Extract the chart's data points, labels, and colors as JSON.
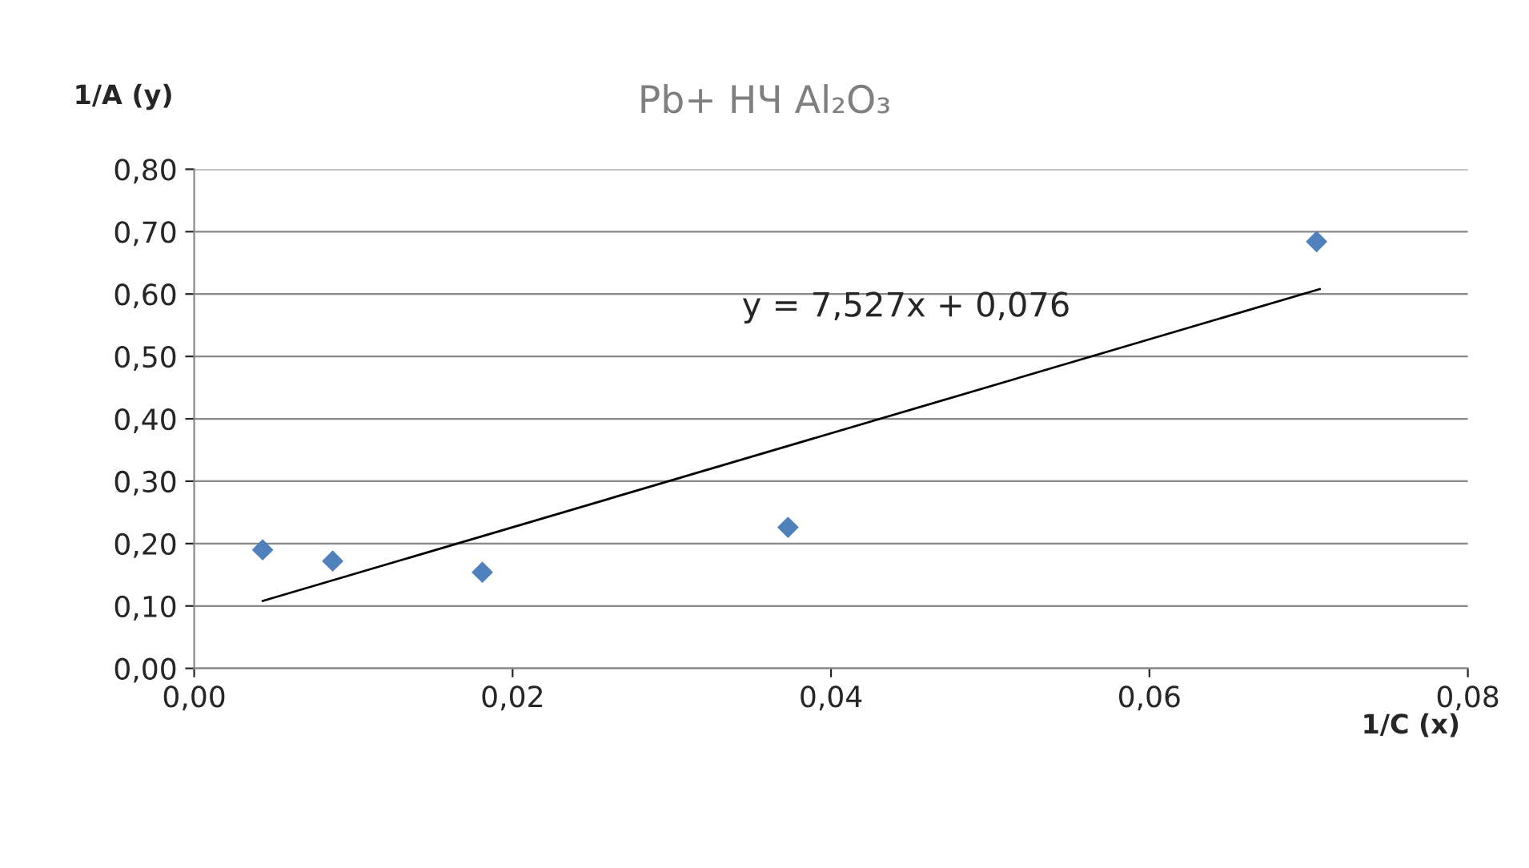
{
  "chart_data": {
    "type": "scatter",
    "title": "Pb+ НЧ Al₂O₃",
    "xlabel": "1/C (x)",
    "ylabel": "1/A (y)",
    "annotations": [
      "y = 7,527x + 0,076"
    ],
    "series": [
      {
        "color": "#4f81bd",
        "marker": "diamond",
        "x": [
          0.0043,
          0.0087,
          0.0181,
          0.0373,
          0.0705
        ],
        "values": [
          0.19,
          0.172,
          0.154,
          0.226,
          0.684
        ]
      },
      {
        "type": "line",
        "color": "#000000",
        "marker": "none",
        "line_style": "solid",
        "x": [
          0.0043,
          0.0707
        ],
        "values": [
          0.108,
          0.608
        ]
      }
    ],
    "xlim": [
      0,
      0.08
    ],
    "ylim": [
      0,
      0.8
    ],
    "xticks": [
      {
        "value": 0,
        "label": "0,00"
      },
      {
        "value": 0.02,
        "label": "0,02"
      },
      {
        "value": 0.04,
        "label": "0,04"
      },
      {
        "value": 0.06,
        "label": "0,06"
      },
      {
        "value": 0.08,
        "label": "0,08"
      }
    ],
    "yticks": [
      {
        "value": 0,
        "label": "0,00"
      },
      {
        "value": 0.1,
        "label": "0,10"
      },
      {
        "value": 0.2,
        "label": "0,20"
      },
      {
        "value": 0.3,
        "label": "0,30"
      },
      {
        "value": 0.4,
        "label": "0,40"
      },
      {
        "value": 0.5,
        "label": "0,50"
      },
      {
        "value": 0.6,
        "label": "0,60"
      },
      {
        "value": 0.7,
        "label": "0,70"
      },
      {
        "value": 0.8,
        "label": "0,80"
      }
    ],
    "grid": "y",
    "legend": false
  }
}
